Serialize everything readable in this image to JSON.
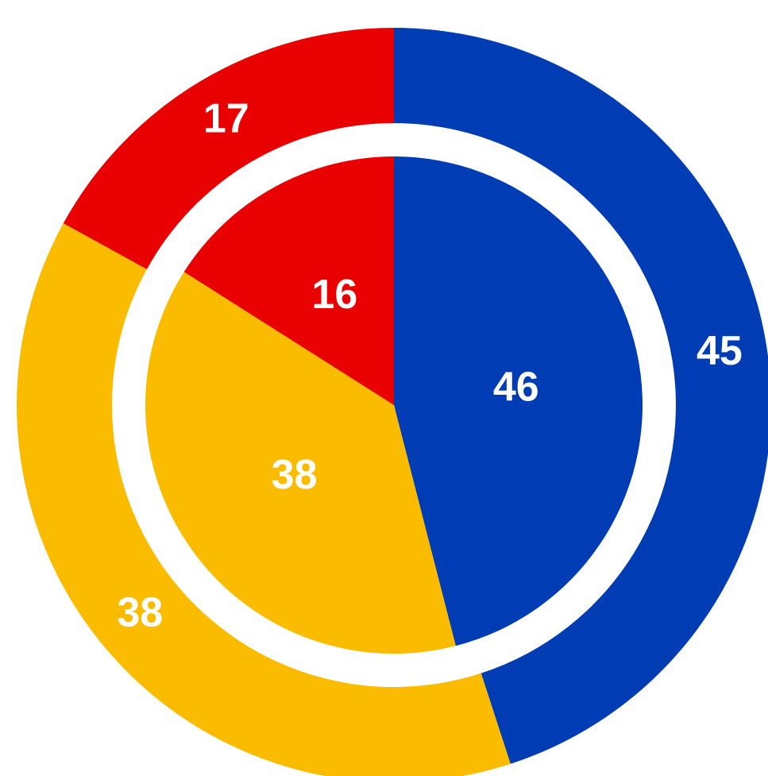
{
  "chart_data": {
    "type": "pie",
    "colors": [
      "#003db5",
      "#fbbc00",
      "#e90000"
    ],
    "series": [
      {
        "values": [
          45,
          38,
          17
        ]
      },
      {
        "values": [
          46,
          38,
          16
        ]
      }
    ]
  }
}
